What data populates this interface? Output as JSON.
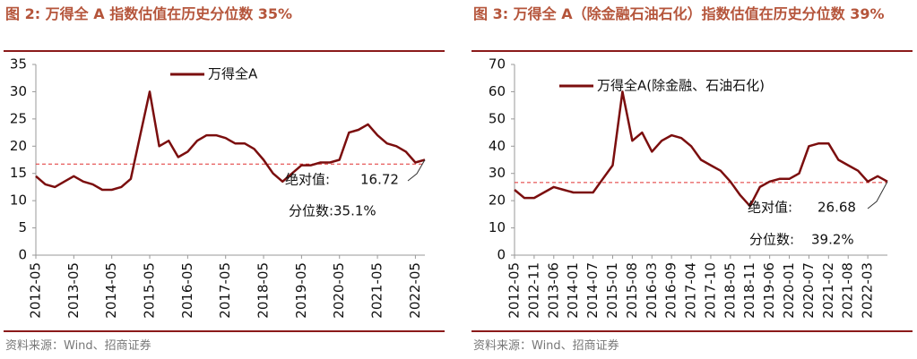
{
  "chart_data": [
    {
      "type": "line",
      "title": "图 2:  万得全 A 指数估值在历史分位数 35%",
      "source": "资料来源：Wind、招商证券",
      "categories": [
        "2012-05",
        null,
        null,
        null,
        "2013-05",
        null,
        null,
        null,
        "2014-05",
        null,
        null,
        null,
        "2015-05",
        null,
        null,
        null,
        "2016-05",
        null,
        null,
        null,
        "2017-05",
        null,
        null,
        null,
        "2018-05",
        null,
        null,
        null,
        "2019-05",
        null,
        null,
        null,
        "2020-05",
        null,
        null,
        null,
        "2021-05",
        null,
        null,
        null,
        "2022-05",
        null
      ],
      "series": [
        {
          "name": "万得全A",
          "color": "#7b0e0e",
          "values": [
            14.5,
            13,
            12.5,
            13.5,
            14.5,
            13.5,
            13,
            12,
            12,
            12.5,
            14,
            22,
            30,
            20,
            21,
            18,
            19,
            21,
            22,
            22,
            21.5,
            20.5,
            20.5,
            19.5,
            17.5,
            15,
            13.5,
            15,
            16.5,
            16.5,
            17,
            17,
            17.5,
            22.5,
            23,
            24,
            22,
            20.5,
            20,
            19,
            17,
            17.5
          ]
        }
      ],
      "ylim": [
        0,
        35
      ],
      "yticks": [
        0,
        5,
        10,
        15,
        20,
        25,
        30,
        35
      ],
      "annotations": {
        "value_label": "绝对值:",
        "current_value": 16.72,
        "percentile_label": "分位数:",
        "percentile": "35.1%"
      }
    },
    {
      "type": "line",
      "title": "图 3:  万得全 A（除金融石油石化）指数估值在历史分位数 39%",
      "source": "资料来源：Wind、招商证券",
      "categories": [
        "2012-05",
        null,
        "2012-11",
        null,
        "2013-06",
        null,
        "2014-01",
        null,
        "2014-07",
        null,
        "2015-01",
        null,
        "2015-08",
        null,
        "2016-03",
        null,
        "2016-09",
        null,
        "2017-04",
        null,
        "2017-10",
        null,
        "2018-05",
        null,
        "2018-11",
        null,
        "2019-06",
        null,
        "2020-01",
        null,
        "2020-07",
        null,
        "2021-02",
        null,
        "2021-08",
        null,
        "2022-03",
        null,
        null
      ],
      "series": [
        {
          "name": "万得全A(除金融、石油石化)",
          "color": "#7b0e0e",
          "values": [
            24,
            21,
            21,
            23,
            25,
            24,
            23,
            23,
            23,
            28,
            33,
            60,
            42,
            45,
            38,
            42,
            44,
            43,
            40,
            35,
            33,
            31,
            27,
            22,
            18,
            25,
            27,
            28,
            28,
            30,
            40,
            41,
            41,
            35,
            33,
            31,
            27,
            29,
            27
          ]
        }
      ],
      "ylim": [
        0,
        70
      ],
      "yticks": [
        0,
        10,
        20,
        30,
        40,
        50,
        60,
        70
      ],
      "annotations": {
        "value_label": "绝对值:",
        "current_value": 26.68,
        "percentile_label": "分位数:",
        "percentile": "39.2%"
      }
    }
  ]
}
